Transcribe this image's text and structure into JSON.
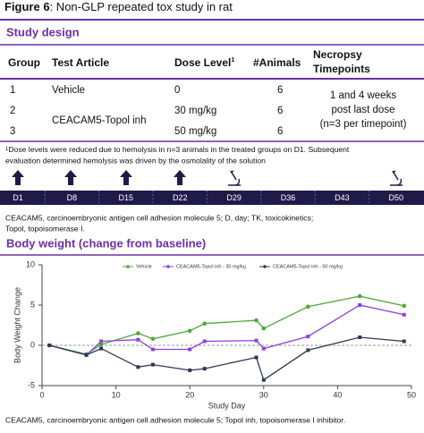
{
  "header": {
    "figure_label": "Figure 6",
    "title": ": Non-GLP repeated tox study in rat"
  },
  "sections": [
    "Study design",
    "Body weight (change from baseline)"
  ],
  "table": {
    "headers": [
      "Group",
      "Test Article",
      {
        "text": "Dose Level",
        "sup": "1"
      },
      "#Animals",
      [
        "Necropsy",
        "Timepoints"
      ]
    ],
    "groups": [
      "1",
      "2",
      "3"
    ],
    "articles": [
      "Vehicle",
      "CEACAM5-Topol inh"
    ],
    "doses": [
      "0",
      "30 mg/kg",
      "50 mg/kg"
    ],
    "animals": [
      "6",
      "6",
      "6"
    ],
    "necropsy": [
      "1 and 4 weeks",
      "post last dose",
      "(n=3 per timepoint)"
    ]
  },
  "footnote": {
    "marker": "1",
    "lines": [
      "Dose levels were reduced due to hemolysis in n=3 animals in the treated groups on D1. Subsequent",
      "evaluation determined hemolysis was driven by the osmolality of the solution"
    ]
  },
  "timeline": {
    "days": [
      "D1",
      "D8",
      "D15",
      "D22",
      "D29",
      "D36",
      "D43",
      "D50"
    ]
  },
  "abbreviations": [
    "CEACAM5, carcinoembryonic antigen cell adhesion molecule 5; D, day; TK, toxicokinetics;",
    "Topol, topoisomerase I."
  ],
  "bottom_note": "CEACAM5, carcinoembryonic antigen cell adhesion molecule 5; Topol inh, topoisomerase I inhibitor.",
  "chart_data": {
    "type": "line",
    "xlabel": "Study Day",
    "ylabel": "Body Weight Change",
    "x": [
      1,
      6,
      8,
      13,
      15,
      20,
      22,
      29,
      30,
      36,
      43,
      49
    ],
    "series": [
      {
        "name": "Vehicle",
        "color": "#4ea83a",
        "values": [
          0,
          -1.1,
          0.1,
          1.5,
          0.8,
          1.8,
          2.7,
          3.1,
          2.1,
          4.8,
          6.1,
          4.9
        ]
      },
      {
        "name": "CEACAM5-Topol inh - 30 mg/kg",
        "color": "#8c3fe0",
        "values": [
          0,
          -1.2,
          0.5,
          0.7,
          -0.5,
          -0.5,
          0.5,
          0.6,
          -0.4,
          1.1,
          5.0,
          3.8
        ]
      },
      {
        "name": "CEACAM5-Topol inh - 50 mg/kg",
        "color": "#2e3a55",
        "values": [
          0,
          -1.2,
          -0.4,
          -2.7,
          -2.4,
          -3.1,
          -2.9,
          -1.5,
          -4.3,
          -0.6,
          1.0,
          0.5
        ]
      }
    ],
    "xlim": [
      0,
      50
    ],
    "xticks": [
      0,
      10,
      20,
      30,
      40,
      50
    ],
    "ylim": [
      -5,
      10
    ],
    "yticks": [
      -5,
      0,
      5,
      10
    ]
  }
}
